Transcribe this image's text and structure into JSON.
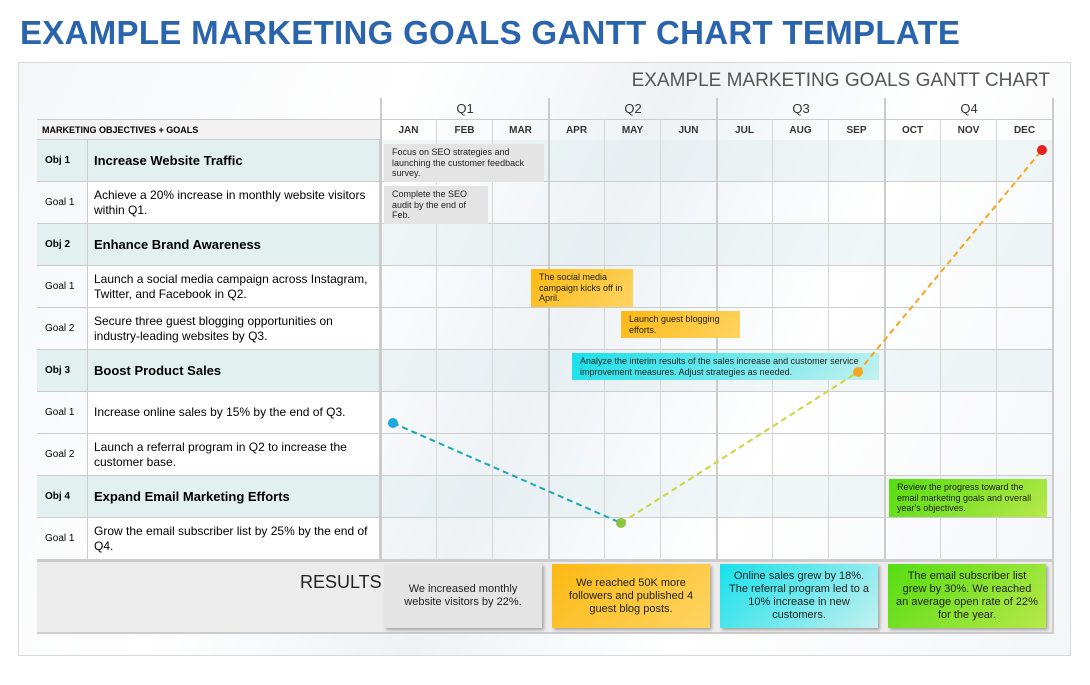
{
  "title": "EXAMPLE MARKETING GOALS GANTT CHART TEMPLATE",
  "chart_title": "EXAMPLE MARKETING GOALS GANTT CHART",
  "header_label": "MARKETING OBJECTIVES + GOALS",
  "quarters": [
    "Q1",
    "Q2",
    "Q3",
    "Q4"
  ],
  "months": [
    "JAN",
    "FEB",
    "MAR",
    "APR",
    "MAY",
    "JUN",
    "JUL",
    "AUG",
    "SEP",
    "OCT",
    "NOV",
    "DEC"
  ],
  "rows": [
    {
      "type": "obj",
      "label": "Obj 1",
      "text": "Increase Website Traffic"
    },
    {
      "type": "goal",
      "label": "Goal 1",
      "text": "Achieve a 20% increase in monthly website visitors within Q1."
    },
    {
      "type": "obj",
      "label": "Obj 2",
      "text": "Enhance Brand Awareness"
    },
    {
      "type": "goal",
      "label": "Goal 1",
      "text": "Launch a social media campaign across Instagram, Twitter, and Facebook in Q2."
    },
    {
      "type": "goal",
      "label": "Goal 2",
      "text": "Secure three guest blogging opportunities on industry-leading websites by Q3."
    },
    {
      "type": "obj",
      "label": "Obj 3",
      "text": "Boost Product Sales"
    },
    {
      "type": "goal",
      "label": "Goal 1",
      "text": "Increase online sales by 15% by the end of Q3."
    },
    {
      "type": "goal",
      "label": "Goal 2",
      "text": "Launch a referral program in Q2 to increase the customer base."
    },
    {
      "type": "obj",
      "label": "Obj 4",
      "text": "Expand Email Marketing Efforts"
    },
    {
      "type": "goal",
      "label": "Goal 1",
      "text": "Grow the email subscriber list by 25% by the end of Q4."
    }
  ],
  "notes": [
    "Focus on SEO strategies and launching the customer feedback survey.",
    "Complete the SEO audit by the end of Feb.",
    "The social media campaign kicks off in April.",
    "Launch guest blogging efforts.",
    "Analyze the interim results of the sales increase and customer service improvement measures. Adjust strategies as needed.",
    "Review the progress toward the email marketing goals and overall year's objectives."
  ],
  "results_label": "RESULTS",
  "results": [
    "We increased monthly website visitors by 22%.",
    "We reached 50K more followers and published 4 guest blog posts.",
    "Online sales grew by 18%. The referral program led to a 10% increase in new customers.",
    "The email subscriber list grew by 30%. We reached an average open rate of 22% for the year."
  ],
  "colors": {
    "title": "#2a64ad",
    "gray": "#e4e4e4",
    "orange": "#fdb913",
    "cyan": "#17e0ea",
    "green": "#55dd11",
    "red": "#e8201e"
  }
}
